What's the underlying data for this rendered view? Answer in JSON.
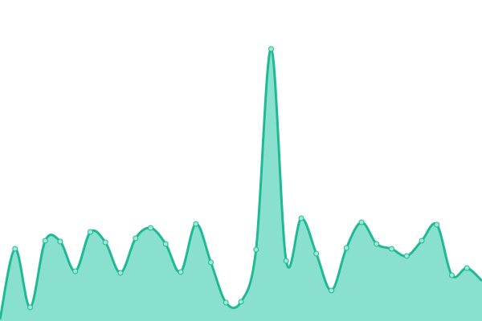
{
  "chart_data": {
    "type": "area",
    "title": "",
    "xlabel": "",
    "ylabel": "",
    "x": [
      0,
      1,
      2,
      3,
      4,
      5,
      6,
      7,
      8,
      9,
      10,
      11,
      12,
      13,
      14,
      15,
      16,
      17,
      18,
      19,
      20,
      21,
      22,
      23,
      24,
      25,
      26,
      27,
      28,
      29,
      30,
      31,
      32
    ],
    "values": [
      2,
      90,
      17,
      100,
      99,
      62,
      111,
      98,
      60,
      103,
      116,
      96,
      61,
      121,
      73,
      23,
      24,
      89,
      339,
      75,
      128,
      84,
      38,
      91,
      123,
      96,
      90,
      81,
      100,
      120,
      57,
      66,
      50
    ],
    "ylim": [
      0,
      400
    ],
    "smooth": true,
    "markers": true,
    "grid": false,
    "axes_visible": false,
    "colors": {
      "line": "#1fba94",
      "fill": "#89e0cf",
      "marker_fill": "#9fe8d6"
    }
  }
}
